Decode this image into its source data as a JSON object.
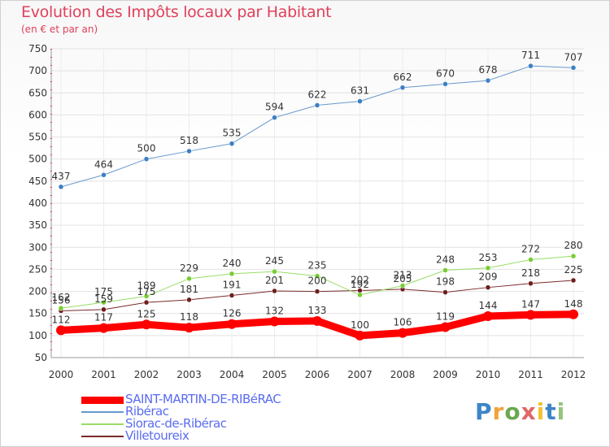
{
  "chart_data": {
    "type": "line",
    "title": "Evolution des Impôts locaux par Habitant",
    "subtitle": "(en € et par an)",
    "xlabel": "",
    "ylabel": "",
    "categories": [
      "2000",
      "2001",
      "2002",
      "2003",
      "2004",
      "2005",
      "2006",
      "2007",
      "2008",
      "2009",
      "2010",
      "2011",
      "2012"
    ],
    "ylim": [
      50,
      750
    ],
    "yticks": [
      50,
      100,
      150,
      200,
      250,
      300,
      350,
      400,
      450,
      500,
      550,
      600,
      650,
      700,
      750
    ],
    "legend_position": "bottom-left",
    "series": [
      {
        "name": "SAINT-MARTIN-DE-RIBéRAC",
        "color": "#ff0000",
        "marker": "#ff0000",
        "width": 9,
        "values": [
          112,
          117,
          125,
          118,
          126,
          132,
          133,
          100,
          106,
          119,
          144,
          147,
          148
        ]
      },
      {
        "name": "Ribérac",
        "color": "#6699cc",
        "marker": "#3b7fc4",
        "width": 1,
        "values": [
          437,
          464,
          500,
          518,
          535,
          594,
          622,
          631,
          662,
          670,
          678,
          711,
          707
        ]
      },
      {
        "name": "Siorac-de-Ribérac",
        "color": "#99dd66",
        "marker": "#77cc33",
        "width": 1,
        "values": [
          162,
          175,
          189,
          229,
          240,
          245,
          235,
          192,
          213,
          248,
          253,
          272,
          280
        ]
      },
      {
        "name": "Villetoureix",
        "color": "#7a2a2a",
        "marker": "#6e1e1e",
        "width": 1,
        "values": [
          156,
          159,
          175,
          181,
          191,
          201,
          200,
          202,
          205,
          198,
          209,
          218,
          225
        ]
      }
    ]
  },
  "logo": {
    "text": "Proxiti",
    "colors": [
      "#3d85c6",
      "#f1a33b",
      "#6aa84f",
      "#e06666",
      "#f1c232",
      "#3d85c6",
      "#93c47d"
    ]
  }
}
